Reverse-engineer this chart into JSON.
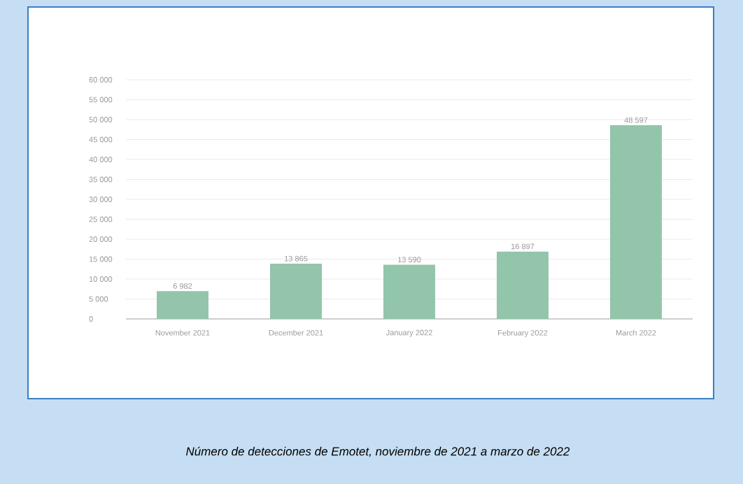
{
  "chart_data": {
    "type": "bar",
    "categories": [
      "November 2021",
      "December 2021",
      "January 2022",
      "February 2022",
      "March 2022"
    ],
    "values": [
      6982,
      13865,
      13590,
      16897,
      48597
    ],
    "value_labels": [
      "6 982",
      "13 865",
      "13 590",
      "16 897",
      "48 597"
    ],
    "color": "#93c5aa",
    "ylim": [
      0,
      60000
    ],
    "yticks": [
      {
        "value": 0,
        "label": "0"
      },
      {
        "value": 5000,
        "label": "5 000"
      },
      {
        "value": 10000,
        "label": "10 000"
      },
      {
        "value": 15000,
        "label": "15 000"
      },
      {
        "value": 20000,
        "label": "20 000"
      },
      {
        "value": 25000,
        "label": "25 000"
      },
      {
        "value": 30000,
        "label": "30 000"
      },
      {
        "value": 35000,
        "label": "35 000"
      },
      {
        "value": 40000,
        "label": "40 000"
      },
      {
        "value": 45000,
        "label": "45 000"
      },
      {
        "value": 50000,
        "label": "50 000"
      },
      {
        "value": 55000,
        "label": "55 000"
      },
      {
        "value": 60000,
        "label": "60 000"
      }
    ],
    "grid": "y",
    "annotations": [
      "*Número de detecciones de Emotet, noviembre de 2021 a marzo de 2022*"
    ]
  }
}
